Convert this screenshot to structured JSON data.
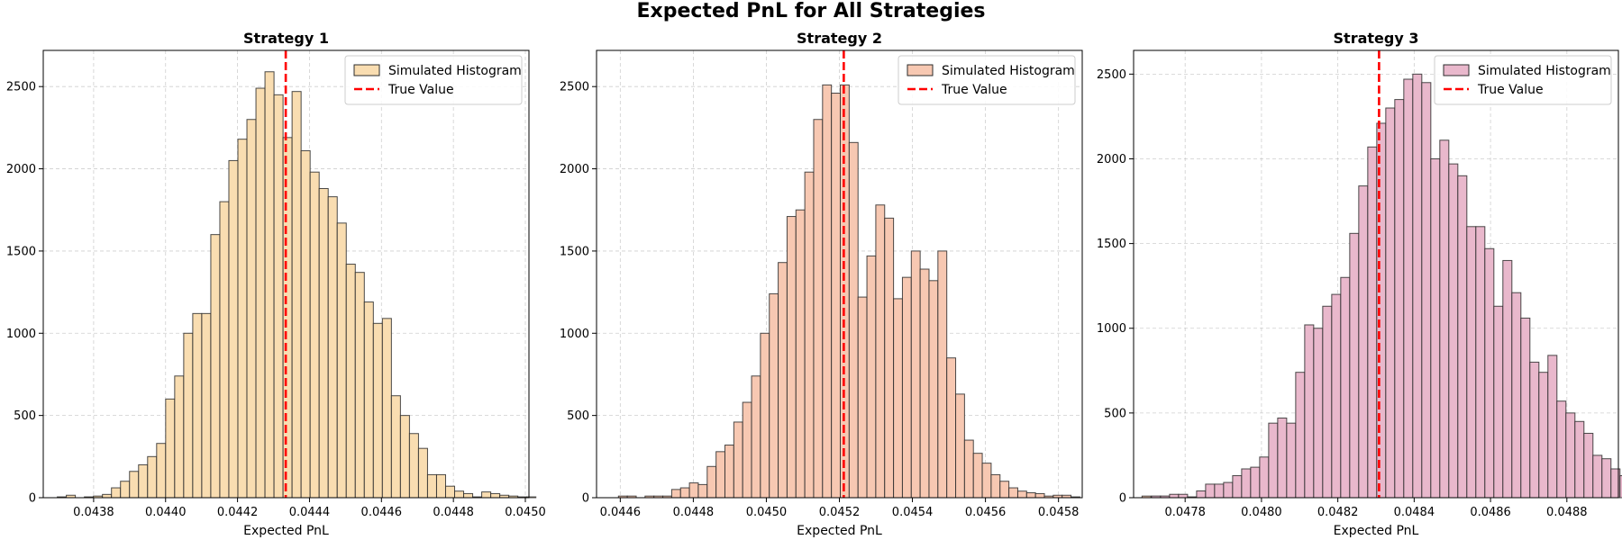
{
  "figure": {
    "title": "Expected PnL for All Strategies"
  },
  "chart_data": [
    {
      "type": "histogram",
      "title": "Strategy 1",
      "xlabel": "Expected PnL",
      "ylabel": "",
      "xlim": [
        0.04366,
        0.04501
      ],
      "ylim": [
        0,
        2720
      ],
      "xticks": [
        0.0438,
        0.044,
        0.0442,
        0.0444,
        0.0446,
        0.0448,
        0.045
      ],
      "xtick_labels": [
        "0.0438",
        "0.0440",
        "0.0442",
        "0.0444",
        "0.0446",
        "0.0448",
        "0.0450"
      ],
      "yticks": [
        0,
        500,
        1000,
        1500,
        2000,
        2500
      ],
      "yticks_labels": [
        "0",
        "500",
        "1000",
        "1500",
        "2000",
        "2500"
      ],
      "grid": true,
      "legend_position": "top-right",
      "bar_color": "#F9DDB1",
      "bin_start": 0.043699,
      "bin_width": 2.51e-05,
      "counts": [
        5,
        15,
        0,
        5,
        10,
        20,
        60,
        100,
        160,
        200,
        250,
        330,
        600,
        740,
        1000,
        1120,
        1120,
        1600,
        1800,
        2050,
        2180,
        2300,
        2490,
        2590,
        2450,
        2190,
        2470,
        2110,
        1980,
        1880,
        1830,
        1670,
        1420,
        1370,
        1190,
        1060,
        1090,
        620,
        500,
        390,
        300,
        140,
        140,
        70,
        40,
        25,
        5,
        35,
        25,
        15,
        10,
        5,
        5
      ],
      "true_value": 0.044334,
      "legend": [
        "Simulated Histogram",
        "True Value"
      ]
    },
    {
      "type": "histogram",
      "title": "Strategy 2",
      "xlabel": "Expected PnL",
      "ylabel": "",
      "xlim": [
        0.044535,
        0.045865
      ],
      "ylim": [
        0,
        2720
      ],
      "xticks": [
        0.0446,
        0.0448,
        0.045,
        0.0452,
        0.0454,
        0.0456,
        0.0458
      ],
      "xtick_labels": [
        "0.0446",
        "0.0448",
        "0.0450",
        "0.0452",
        "0.0454",
        "0.0456",
        "0.0458"
      ],
      "yticks": [
        0,
        500,
        1000,
        1500,
        2000,
        2500
      ],
      "yticks_labels": [
        "0",
        "500",
        "1000",
        "1500",
        "2000",
        "2500"
      ],
      "grid": true,
      "legend_position": "top-right",
      "bar_color": "#F7C8B2",
      "bin_start": 0.044595,
      "bin_width": 2.43e-05,
      "counts": [
        10,
        10,
        0,
        10,
        10,
        10,
        50,
        60,
        90,
        80,
        190,
        280,
        320,
        460,
        580,
        740,
        1000,
        1240,
        1430,
        1710,
        1750,
        1980,
        2300,
        2510,
        2460,
        2510,
        2160,
        1220,
        1470,
        1780,
        1700,
        1210,
        1340,
        1500,
        1390,
        1320,
        1500,
        850,
        630,
        350,
        270,
        210,
        140,
        100,
        60,
        40,
        30,
        25,
        10,
        15,
        15,
        5,
        0,
        0,
        0,
        0,
        0,
        0,
        0,
        10
      ],
      "true_value": 0.045212,
      "legend": [
        "Simulated Histogram",
        "True Value"
      ]
    },
    {
      "type": "histogram",
      "title": "Strategy 3",
      "xlabel": "Expected PnL",
      "ylabel": "",
      "xlim": [
        0.047665,
        0.048935
      ],
      "ylim": [
        0,
        2640
      ],
      "xticks": [
        0.0478,
        0.048,
        0.0482,
        0.0484,
        0.0486,
        0.0488
      ],
      "xtick_labels": [
        "0.0478",
        "0.0480",
        "0.0482",
        "0.0484",
        "0.0486",
        "0.0488"
      ],
      "yticks": [
        0,
        500,
        1000,
        1500,
        2000,
        2500
      ],
      "yticks_labels": [
        "0",
        "500",
        "1000",
        "1500",
        "2000",
        "2500"
      ],
      "grid": true,
      "legend_position": "top-right",
      "bar_color": "#E9B8CC",
      "bin_start": 0.047712,
      "bin_width": 2.36e-05,
      "counts": [
        10,
        10,
        20,
        20,
        5,
        40,
        80,
        80,
        90,
        130,
        170,
        180,
        240,
        440,
        470,
        440,
        740,
        1020,
        1000,
        1130,
        1200,
        1300,
        1560,
        1840,
        2070,
        2210,
        2300,
        2350,
        2470,
        2500,
        2450,
        2000,
        2110,
        1970,
        1900,
        1600,
        1600,
        1470,
        1130,
        1400,
        1210,
        1060,
        800,
        740,
        840,
        570,
        500,
        450,
        380,
        250,
        230,
        170,
        130,
        60,
        60,
        20,
        20,
        30,
        5,
        0,
        0
      ],
      "true_value": 0.048308,
      "legend": [
        "Simulated Histogram",
        "True Value"
      ]
    }
  ]
}
